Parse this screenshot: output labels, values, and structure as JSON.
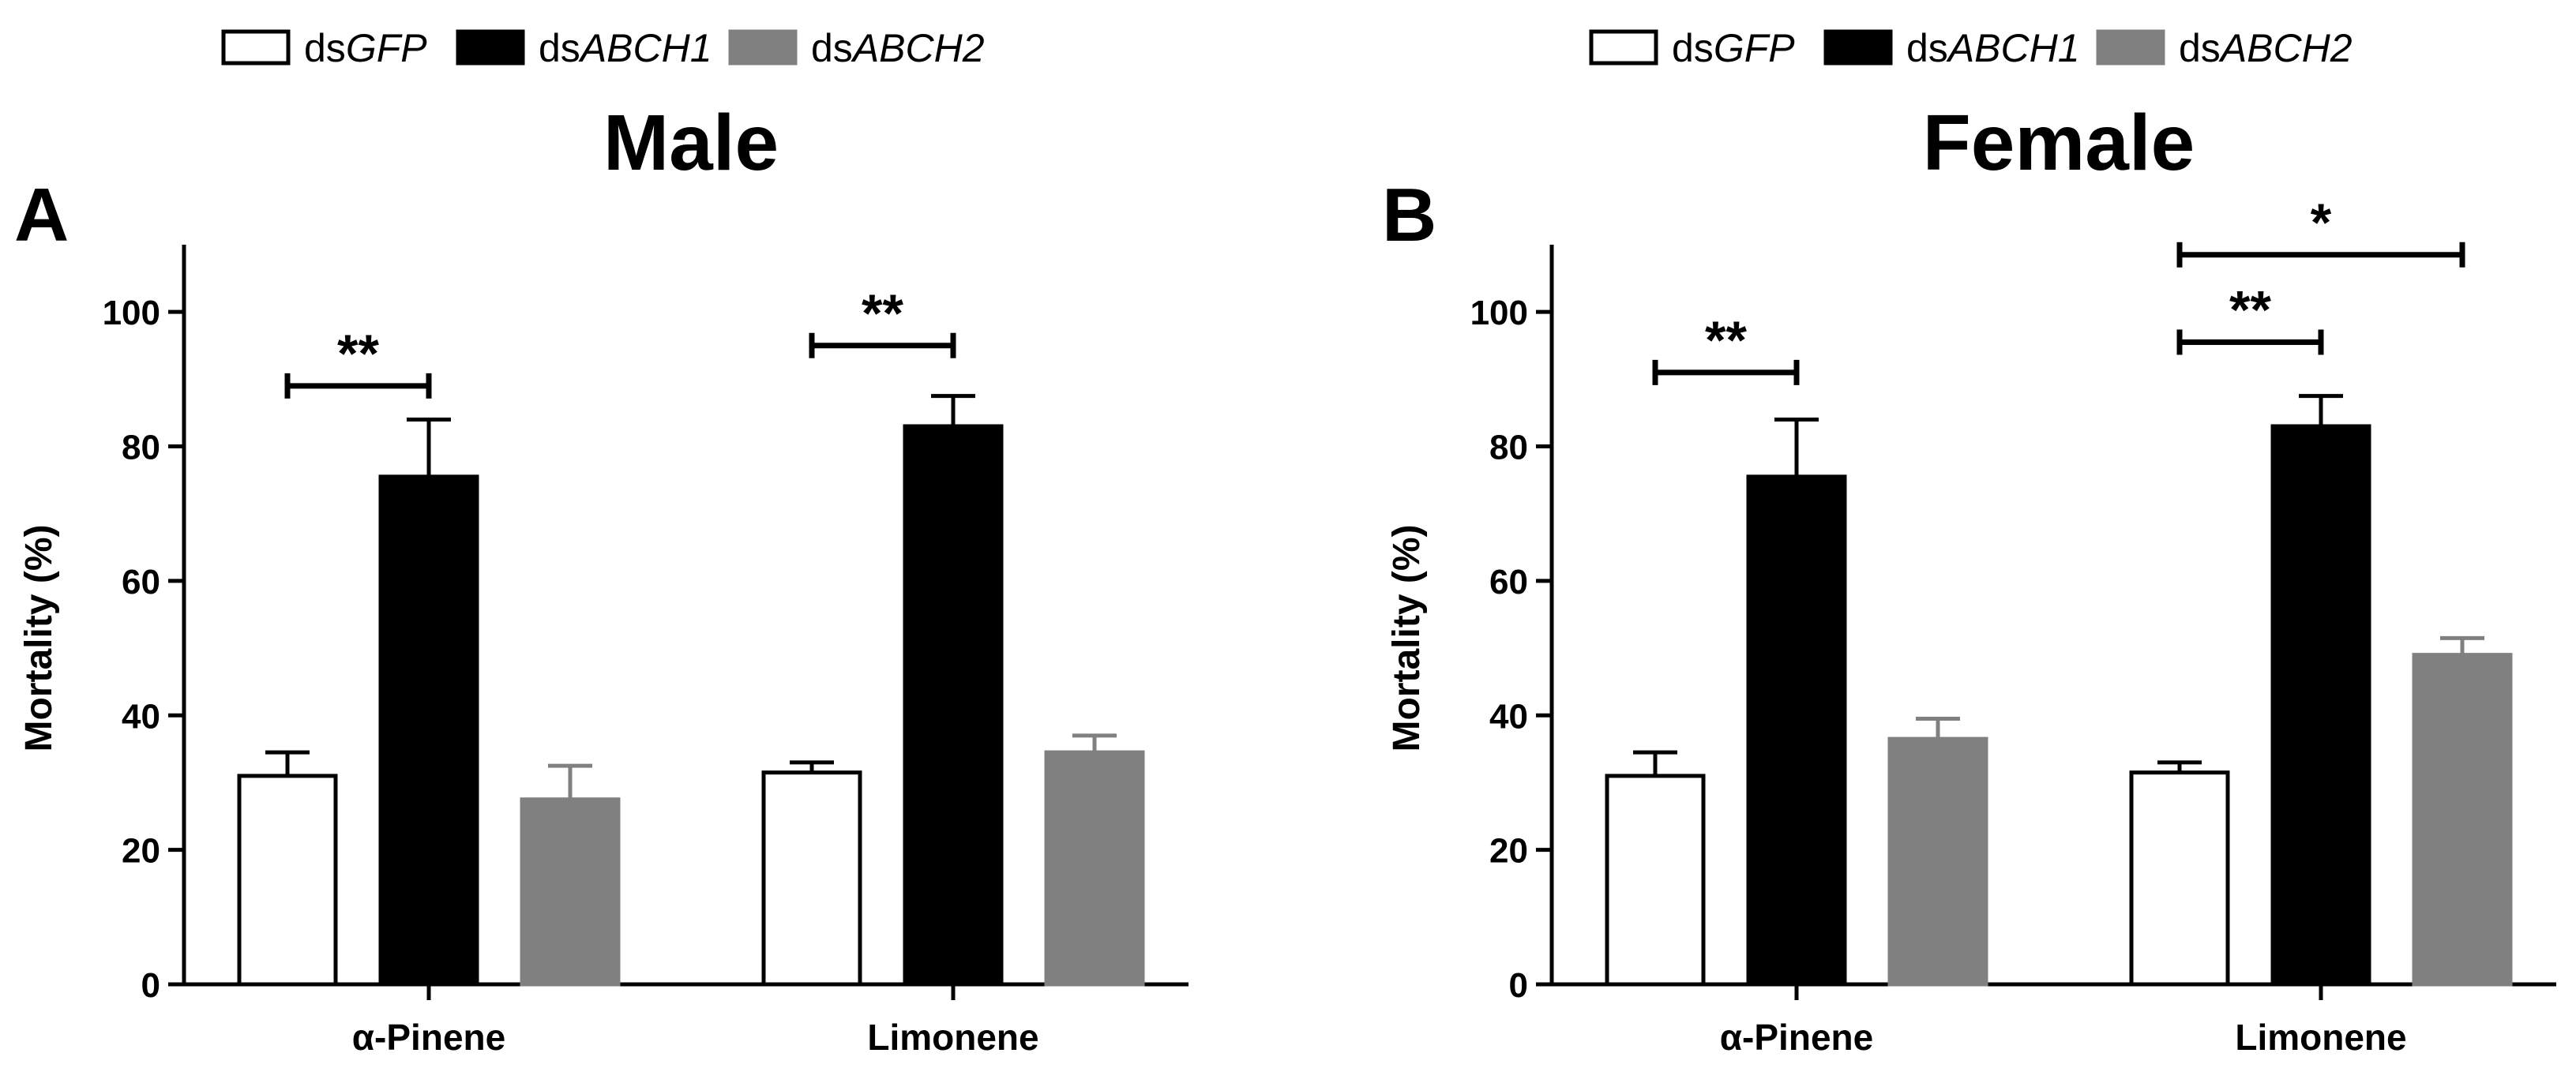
{
  "legend": {
    "entries": [
      {
        "prefix": "ds",
        "gene": "GFP",
        "color": "#ffffff"
      },
      {
        "prefix": "ds",
        "gene": "ABCH1",
        "color": "#000000"
      },
      {
        "prefix": "ds",
        "gene": "ABCH2",
        "color": "#808080"
      }
    ]
  },
  "chart_data": [
    {
      "type": "bar",
      "panel_letter": "A",
      "title": "Male",
      "ylabel": "Mortality (%)",
      "xlabel": "",
      "ylim": [
        0,
        110
      ],
      "yticks": [
        0,
        20,
        40,
        60,
        80,
        100
      ],
      "categories": [
        "α-Pinene",
        "Limonene"
      ],
      "series": [
        {
          "name": "dsGFP",
          "values": [
            31,
            31.5
          ],
          "errors": [
            3.5,
            1.5
          ],
          "color": "#ffffff"
        },
        {
          "name": "dsABCH1",
          "values": [
            75.5,
            83
          ],
          "errors": [
            8.5,
            4.5
          ],
          "color": "#000000"
        },
        {
          "name": "dsABCH2",
          "values": [
            27.5,
            34.5
          ],
          "errors": [
            5,
            2.5
          ],
          "color": "#808080"
        }
      ],
      "significance": [
        {
          "category": "α-Pinene",
          "from": "dsGFP",
          "to": "dsABCH1",
          "label": "**",
          "y": 89
        },
        {
          "category": "Limonene",
          "from": "dsGFP",
          "to": "dsABCH1",
          "label": "**",
          "y": 95
        }
      ]
    },
    {
      "type": "bar",
      "panel_letter": "B",
      "title": "Female",
      "ylabel": "Mortality (%)",
      "xlabel": "",
      "ylim": [
        0,
        110
      ],
      "yticks": [
        0,
        20,
        40,
        60,
        80,
        100
      ],
      "categories": [
        "α-Pinene",
        "Limonene"
      ],
      "series": [
        {
          "name": "dsGFP",
          "values": [
            31,
            31.5
          ],
          "errors": [
            3.5,
            1.5
          ],
          "color": "#ffffff"
        },
        {
          "name": "dsABCH1",
          "values": [
            75.5,
            83
          ],
          "errors": [
            8.5,
            4.5
          ],
          "color": "#000000"
        },
        {
          "name": "dsABCH2",
          "values": [
            36.5,
            49
          ],
          "errors": [
            3,
            2.5
          ],
          "color": "#808080"
        }
      ],
      "significance": [
        {
          "category": "α-Pinene",
          "from": "dsGFP",
          "to": "dsABCH1",
          "label": "**",
          "y": 91
        },
        {
          "category": "Limonene",
          "from": "dsGFP",
          "to": "dsABCH1",
          "label": "**",
          "y": 95.5
        },
        {
          "category": "Limonene",
          "from": "dsGFP",
          "to": "dsABCH2",
          "label": "*",
          "y": 108.5
        }
      ]
    }
  ]
}
